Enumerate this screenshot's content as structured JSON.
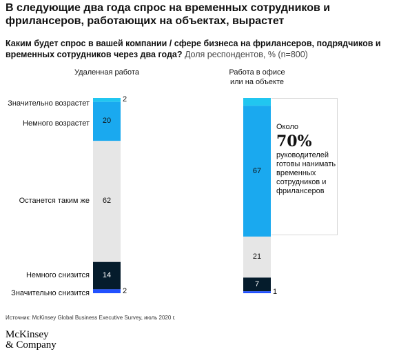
{
  "title": "В следующие два года спрос на временных сотрудников и фрилансеров, работающих на объектах, вырастет",
  "subtitle": {
    "question": "Каким будет спрос в вашей компании / сфере бизнеса на фрилансеров, подрядчиков и временных сотрудников через два года?",
    "unit": "Доля респондентов, % (n=800)"
  },
  "source": "Источник: McKinsey Global Business Executive Survey, июль 2020 г.",
  "logo": {
    "line1": "McKinsey",
    "line2": "& Company"
  },
  "callout": {
    "prefix": "Около",
    "value": "70%",
    "text": "руководителей готовы нанимать временных сотрудников и фрилансеров"
  },
  "colors": {
    "significant_increase": "#21c6f0",
    "slight_increase": "#1aa9ef",
    "unchanged": "#e6e6e6",
    "slight_decrease": "#051c2c",
    "significant_decrease": "#2251ff"
  },
  "chart_data": {
    "type": "bar",
    "stacked": true,
    "categories": [
      "Удаленная работа",
      "Работа в офисе или на объекте"
    ],
    "category_lines": [
      [
        "Удаленная работа"
      ],
      [
        "Работа в офисе",
        "или на объекте"
      ]
    ],
    "series": [
      {
        "name": "Значительно возрастет",
        "values": [
          2,
          4
        ]
      },
      {
        "name": "Немного возрастет",
        "values": [
          20,
          67
        ]
      },
      {
        "name": "Останется таким же",
        "values": [
          62,
          21
        ]
      },
      {
        "name": "Немного снизится",
        "values": [
          14,
          7
        ]
      },
      {
        "name": "Значительно снизится",
        "values": [
          2,
          1
        ]
      }
    ],
    "ylim": [
      0,
      100
    ],
    "legend": "left"
  }
}
